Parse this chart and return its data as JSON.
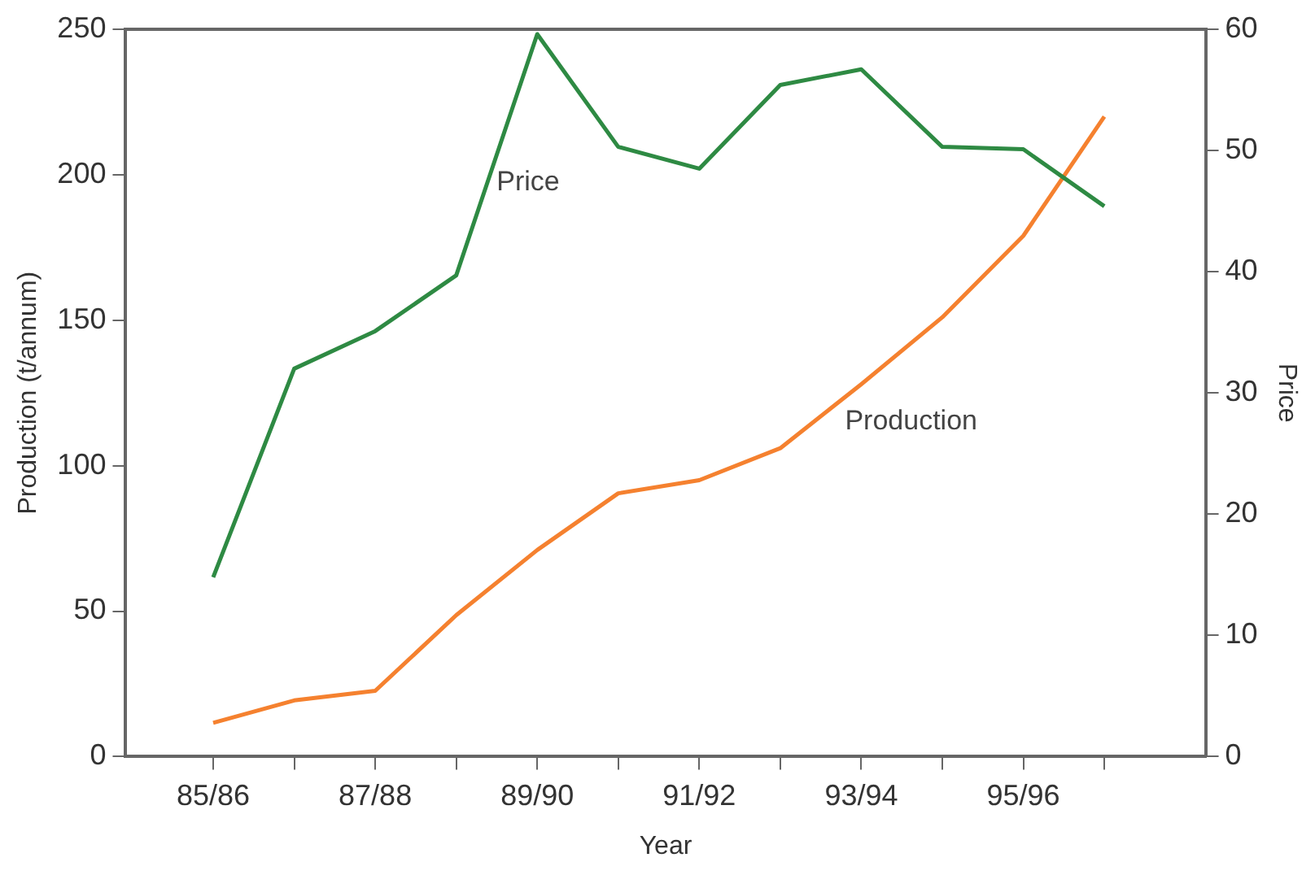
{
  "chart_data": {
    "type": "line",
    "xlabel": "Year",
    "ylabel": "Production (t/annum)",
    "y2label": "Price",
    "categories": [
      "85/86",
      null,
      "87/88",
      null,
      "89/90",
      null,
      "91/92",
      null,
      "93/94",
      null,
      "95/96",
      null
    ],
    "series": [
      {
        "name": "Price",
        "color": "#2e8a43",
        "axis": "y2",
        "values": [
          14.8,
          32,
          35.1,
          39.7,
          59.6,
          50.3,
          48.5,
          55.4,
          56.7,
          50.3,
          50.1,
          45.4
        ]
      },
      {
        "name": "Production",
        "color": "#f5812f",
        "values": [
          11.6,
          19.3,
          22.6,
          48.6,
          71,
          90.5,
          95,
          106,
          128,
          151,
          179,
          220
        ]
      }
    ],
    "ylim": [
      0,
      250
    ],
    "yticks": [
      0,
      50,
      100,
      150,
      200,
      250
    ],
    "y2lim": [
      0,
      60
    ],
    "y2ticks": [
      0,
      10,
      20,
      30,
      40,
      50,
      60
    ],
    "grid": false,
    "legend": false,
    "marker": "none",
    "line_style": "solid"
  }
}
